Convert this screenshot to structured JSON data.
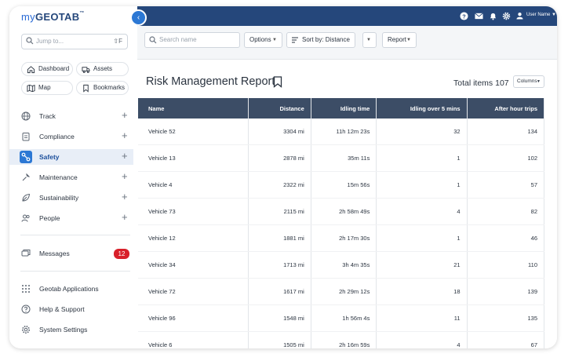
{
  "app": {
    "logo_prefix": "my",
    "logo_main": "GEOTAB",
    "logo_tm": "™"
  },
  "sidebar": {
    "jump_placeholder": "Jump to...",
    "jump_shortcut": "⇧F",
    "quick": [
      {
        "label": "Dashboard",
        "icon": "home-icon"
      },
      {
        "label": "Assets",
        "icon": "truck-icon"
      },
      {
        "label": "Map",
        "icon": "map-icon"
      },
      {
        "label": "Bookmarks",
        "icon": "bookmark-icon"
      }
    ],
    "nav": [
      {
        "label": "Track",
        "icon": "globe-icon",
        "active": false
      },
      {
        "label": "Compliance",
        "icon": "clipboard-icon",
        "active": false
      },
      {
        "label": "Safety",
        "icon": "route-icon",
        "active": true
      },
      {
        "label": "Maintenance",
        "icon": "wrench-icon",
        "active": false
      },
      {
        "label": "Sustainability",
        "icon": "leaf-icon",
        "active": false
      },
      {
        "label": "People",
        "icon": "people-icon",
        "active": false
      }
    ],
    "messages": {
      "label": "Messages",
      "count": "12"
    },
    "bottom": [
      {
        "label": "Geotab Applications",
        "icon": "grid-icon"
      },
      {
        "label": "Help & Support",
        "icon": "help-icon"
      },
      {
        "label": "System Settings",
        "icon": "gear-icon"
      }
    ]
  },
  "topbar": {
    "user_name": "User Name",
    "accent": "#25477b"
  },
  "toolbar": {
    "search_placeholder": "Search name",
    "options_label": "Options",
    "sort_label": "Sort by: Distance",
    "report_label": "Report"
  },
  "report": {
    "title": "Risk Management Report",
    "total": "Total items 107",
    "columns_label": "Columns",
    "headers": [
      "Name",
      "Distance",
      "Idling time",
      "Idling over 5 mins",
      "After hour trips"
    ],
    "rows": [
      [
        "Vehicle 52",
        "3304 mi",
        "11h 12m 23s",
        "32",
        "134"
      ],
      [
        "Vehicle 13",
        "2878 mi",
        "35m 11s",
        "1",
        "102"
      ],
      [
        "Vehicle 4",
        "2322 mi",
        "15m 56s",
        "1",
        "57"
      ],
      [
        "Vehicle 73",
        "2115 mi",
        "2h 58m 49s",
        "4",
        "82"
      ],
      [
        "Vehicle 12",
        "1881 mi",
        "2h 17m 30s",
        "1",
        "46"
      ],
      [
        "Vehicle 34",
        "1713 mi",
        "3h 4m 35s",
        "21",
        "110"
      ],
      [
        "Vehicle 72",
        "1617 mi",
        "2h 29m 12s",
        "18",
        "139"
      ],
      [
        "Vehicle 96",
        "1548 mi",
        "1h 56m 4s",
        "11",
        "135"
      ],
      [
        "Vehicle 6",
        "1505 mi",
        "2h 16m 59s",
        "4",
        "67"
      ]
    ]
  }
}
